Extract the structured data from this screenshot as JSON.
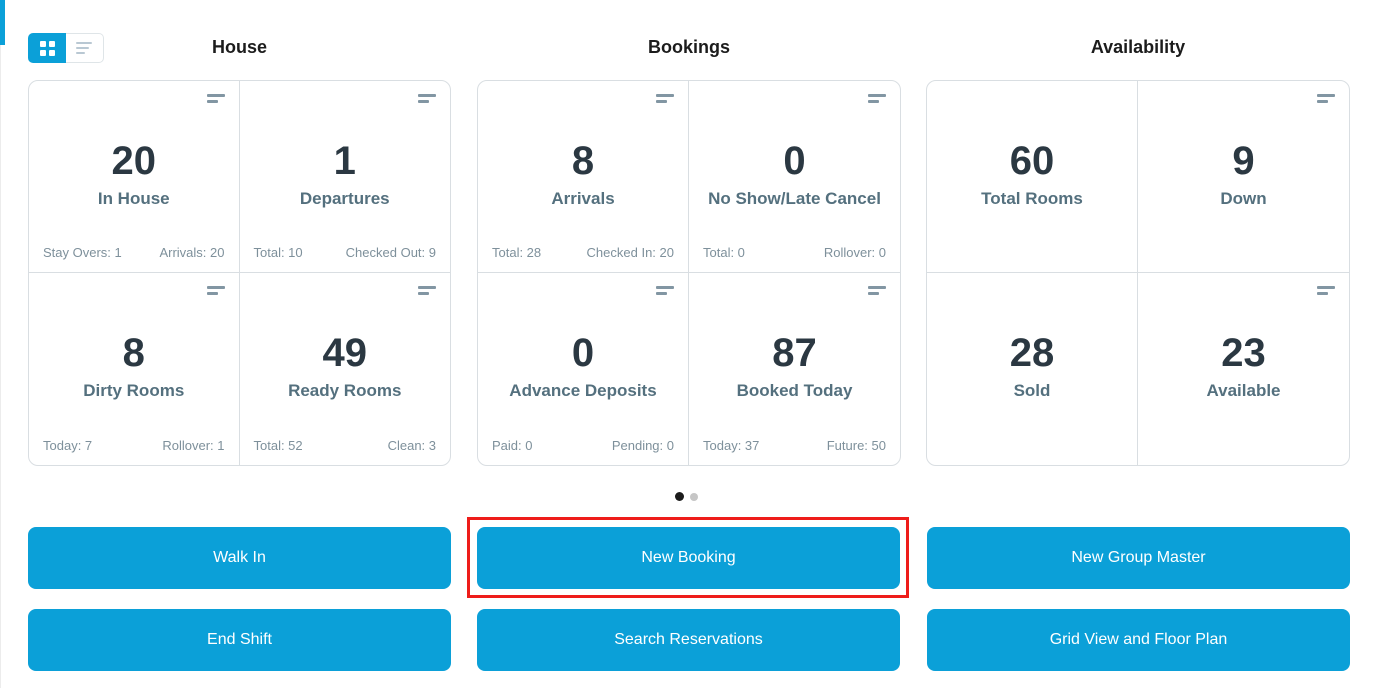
{
  "colors": {
    "accent_blue": "#0ba0d8",
    "highlight_red": "#ee1d1a",
    "value_text": "#2b3842",
    "label_text": "#54707e",
    "stat_text": "#7e909b",
    "panel_border": "#d9dee2"
  },
  "view_toggle": {
    "grid_icon": "grid-view-icon",
    "list_icon": "list-view-icon",
    "active": "grid"
  },
  "sections": [
    {
      "title": "House",
      "cards": [
        {
          "value": "20",
          "label": "In House",
          "stat_left": "Stay Overs: 1",
          "stat_right": "Arrivals: 20",
          "has_menu": true
        },
        {
          "value": "1",
          "label": "Departures",
          "stat_left": "Total: 10",
          "stat_right": "Checked Out: 9",
          "has_menu": true
        },
        {
          "value": "8",
          "label": "Dirty Rooms",
          "stat_left": "Today: 7",
          "stat_right": "Rollover: 1",
          "has_menu": true
        },
        {
          "value": "49",
          "label": "Ready Rooms",
          "stat_left": "Total: 52",
          "stat_right": "Clean: 3",
          "has_menu": true
        }
      ]
    },
    {
      "title": "Bookings",
      "cards": [
        {
          "value": "8",
          "label": "Arrivals",
          "stat_left": "Total: 28",
          "stat_right": "Checked In: 20",
          "has_menu": true
        },
        {
          "value": "0",
          "label": "No Show/Late Cancel",
          "stat_left": "Total: 0",
          "stat_right": "Rollover: 0",
          "has_menu": true
        },
        {
          "value": "0",
          "label": "Advance Deposits",
          "stat_left": "Paid: 0",
          "stat_right": "Pending: 0",
          "has_menu": true
        },
        {
          "value": "87",
          "label": "Booked Today",
          "stat_left": "Today: 37",
          "stat_right": "Future: 50",
          "has_menu": true
        }
      ]
    },
    {
      "title": "Availability",
      "cards": [
        {
          "value": "60",
          "label": "Total Rooms",
          "has_menu": false
        },
        {
          "value": "9",
          "label": "Down",
          "has_menu": true
        },
        {
          "value": "28",
          "label": "Sold",
          "has_menu": false
        },
        {
          "value": "23",
          "label": "Available",
          "has_menu": true
        }
      ]
    }
  ],
  "carousel": {
    "dot_count": 2,
    "active_dot": 1
  },
  "actions": [
    {
      "label": "Walk In"
    },
    {
      "label": "New Booking",
      "highlighted": true
    },
    {
      "label": "New Group Master"
    },
    {
      "label": "End Shift"
    },
    {
      "label": "Search Reservations"
    },
    {
      "label": "Grid View and Floor Plan"
    }
  ]
}
